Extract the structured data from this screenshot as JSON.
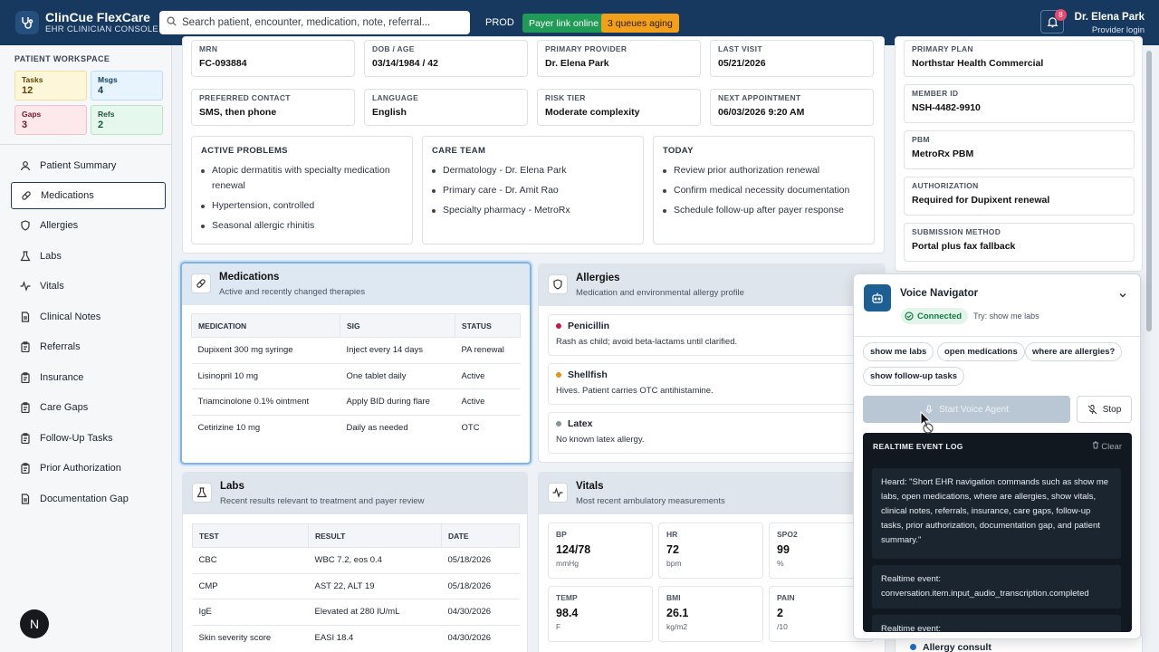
{
  "app": {
    "name": "ClinCue FlexCare",
    "subtitle": "EHR CLINICIAN CONSOLE"
  },
  "search": {
    "placeholder": "Search patient, encounter, medication, note, referral..."
  },
  "env": "PROD",
  "badges": {
    "payer": "Payer link online",
    "queues": "3 queues aging"
  },
  "notifications": {
    "count": "8"
  },
  "user": {
    "name": "Dr. Elena Park",
    "role": "Provider login"
  },
  "workspace": {
    "title": "PATIENT WORKSPACE",
    "cards": [
      {
        "label": "Tasks",
        "value": "12"
      },
      {
        "label": "Msgs",
        "value": "4"
      },
      {
        "label": "Gaps",
        "value": "3"
      },
      {
        "label": "Refs",
        "value": "2"
      }
    ]
  },
  "nav": [
    {
      "label": "Patient Summary",
      "icon": "user-icon"
    },
    {
      "label": "Medications",
      "icon": "pill-icon",
      "active": true
    },
    {
      "label": "Allergies",
      "icon": "shield-icon"
    },
    {
      "label": "Labs",
      "icon": "flask-icon"
    },
    {
      "label": "Vitals",
      "icon": "pulse-icon"
    },
    {
      "label": "Clinical Notes",
      "icon": "note-icon"
    },
    {
      "label": "Referrals",
      "icon": "clipboard-icon"
    },
    {
      "label": "Insurance",
      "icon": "card-icon"
    },
    {
      "label": "Care Gaps",
      "icon": "clipboard-icon"
    },
    {
      "label": "Follow-Up Tasks",
      "icon": "clipboard-icon"
    },
    {
      "label": "Prior Authorization",
      "icon": "clipboard-icon"
    },
    {
      "label": "Documentation Gap",
      "icon": "note-icon"
    }
  ],
  "fab": "N",
  "demographics": [
    {
      "label": "MRN",
      "value": "FC-093884"
    },
    {
      "label": "DOB / AGE",
      "value": "03/14/1984 / 42"
    },
    {
      "label": "PRIMARY PROVIDER",
      "value": "Dr. Elena Park"
    },
    {
      "label": "LAST VISIT",
      "value": "05/21/2026"
    },
    {
      "label": "PREFERRED CONTACT",
      "value": "SMS, then phone"
    },
    {
      "label": "LANGUAGE",
      "value": "English"
    },
    {
      "label": "RISK TIER",
      "value": "Moderate complexity"
    },
    {
      "label": "NEXT APPOINTMENT",
      "value": "06/03/2026 9:20 AM"
    }
  ],
  "summary_sections": [
    {
      "title": "ACTIVE PROBLEMS",
      "items": [
        "Atopic dermatitis with specialty medication renewal",
        "Hypertension, controlled",
        "Seasonal allergic rhinitis"
      ]
    },
    {
      "title": "CARE TEAM",
      "items": [
        "Dermatology - Dr. Elena Park",
        "Primary care - Dr. Amit Rao",
        "Specialty pharmacy - MetroRx"
      ]
    },
    {
      "title": "TODAY",
      "items": [
        "Review prior authorization renewal",
        "Confirm medical necessity documentation",
        "Schedule follow-up after payer response"
      ]
    }
  ],
  "insurance": [
    {
      "label": "PRIMARY PLAN",
      "value": "Northstar Health Commercial"
    },
    {
      "label": "MEMBER ID",
      "value": "NSH-4482-9910"
    },
    {
      "label": "PBM",
      "value": "MetroRx PBM"
    },
    {
      "label": "AUTHORIZATION",
      "value": "Required for Dupixent renewal"
    },
    {
      "label": "SUBMISSION METHOD",
      "value": "Portal plus fax fallback"
    }
  ],
  "medications": {
    "title": "Medications",
    "subtitle": "Active and recently changed therapies",
    "columns": [
      "MEDICATION",
      "SIG",
      "STATUS"
    ],
    "rows": [
      [
        "Dupixent 300 mg syringe",
        "Inject every 14 days",
        "PA renewal"
      ],
      [
        "Lisinopril 10 mg",
        "One tablet daily",
        "Active"
      ],
      [
        "Triamcinolone 0.1% ointment",
        "Apply BID during flare",
        "Active"
      ],
      [
        "Cetirizine 10 mg",
        "Daily as needed",
        "OTC"
      ]
    ]
  },
  "allergies": {
    "title": "Allergies",
    "subtitle": "Medication and environmental allergy profile",
    "items": [
      {
        "name": "Penicillin",
        "note": "Rash as child; avoid beta-lactams until clarified.",
        "color": "#c8184a"
      },
      {
        "name": "Shellfish",
        "note": "Hives. Patient carries OTC antihistamine.",
        "color": "#e8950f"
      },
      {
        "name": "Latex",
        "note": "No known latex allergy.",
        "color": "#8a929c"
      }
    ]
  },
  "labs": {
    "title": "Labs",
    "subtitle": "Recent results relevant to treatment and payer review",
    "columns": [
      "TEST",
      "RESULT",
      "DATE"
    ],
    "rows": [
      [
        "CBC",
        "WBC 7.2, eos 0.4",
        "05/18/2026"
      ],
      [
        "CMP",
        "AST 22, ALT 19",
        "05/18/2026"
      ],
      [
        "IgE",
        "Elevated at 280 IU/mL",
        "04/30/2026"
      ],
      [
        "Skin severity score",
        "EASI 18.4",
        "04/30/2026"
      ]
    ]
  },
  "vitals": {
    "title": "Vitals",
    "subtitle": "Most recent ambulatory measurements",
    "items": [
      {
        "label": "BP",
        "value": "124/78",
        "unit": "mmHg"
      },
      {
        "label": "HR",
        "value": "72",
        "unit": "bpm"
      },
      {
        "label": "SPO2",
        "value": "99",
        "unit": "%"
      },
      {
        "label": "TEMP",
        "value": "98.4",
        "unit": "F"
      },
      {
        "label": "BMI",
        "value": "26.1",
        "unit": "kg/m2"
      },
      {
        "label": "PAIN",
        "value": "2",
        "unit": "/10"
      }
    ]
  },
  "consult": {
    "label": "Allergy consult",
    "color": "#1d6fc4"
  },
  "voice": {
    "title": "Voice Navigator",
    "status": "Connected",
    "hint": "Try: show me labs",
    "chips": [
      "show me labs",
      "open medications",
      "where are allergies?",
      "show follow-up tasks"
    ],
    "start_label": "Start Voice Agent",
    "stop_label": "Stop",
    "log_title": "REALTIME EVENT LOG",
    "clear_label": "Clear",
    "log": [
      "Heard: \"Short EHR navigation commands such as show me labs, open medications, where are allergies, show vitals, clinical notes, referrals, insurance, care gaps, follow-up tasks, prior authorization, documentation gap, and patient summary.\"",
      "Realtime event: conversation.item.input_audio_transcription.completed",
      "Realtime event:"
    ]
  },
  "colors": {
    "topbar": "#17395f",
    "accent": "#1d5f93",
    "connected": "#137a43"
  }
}
